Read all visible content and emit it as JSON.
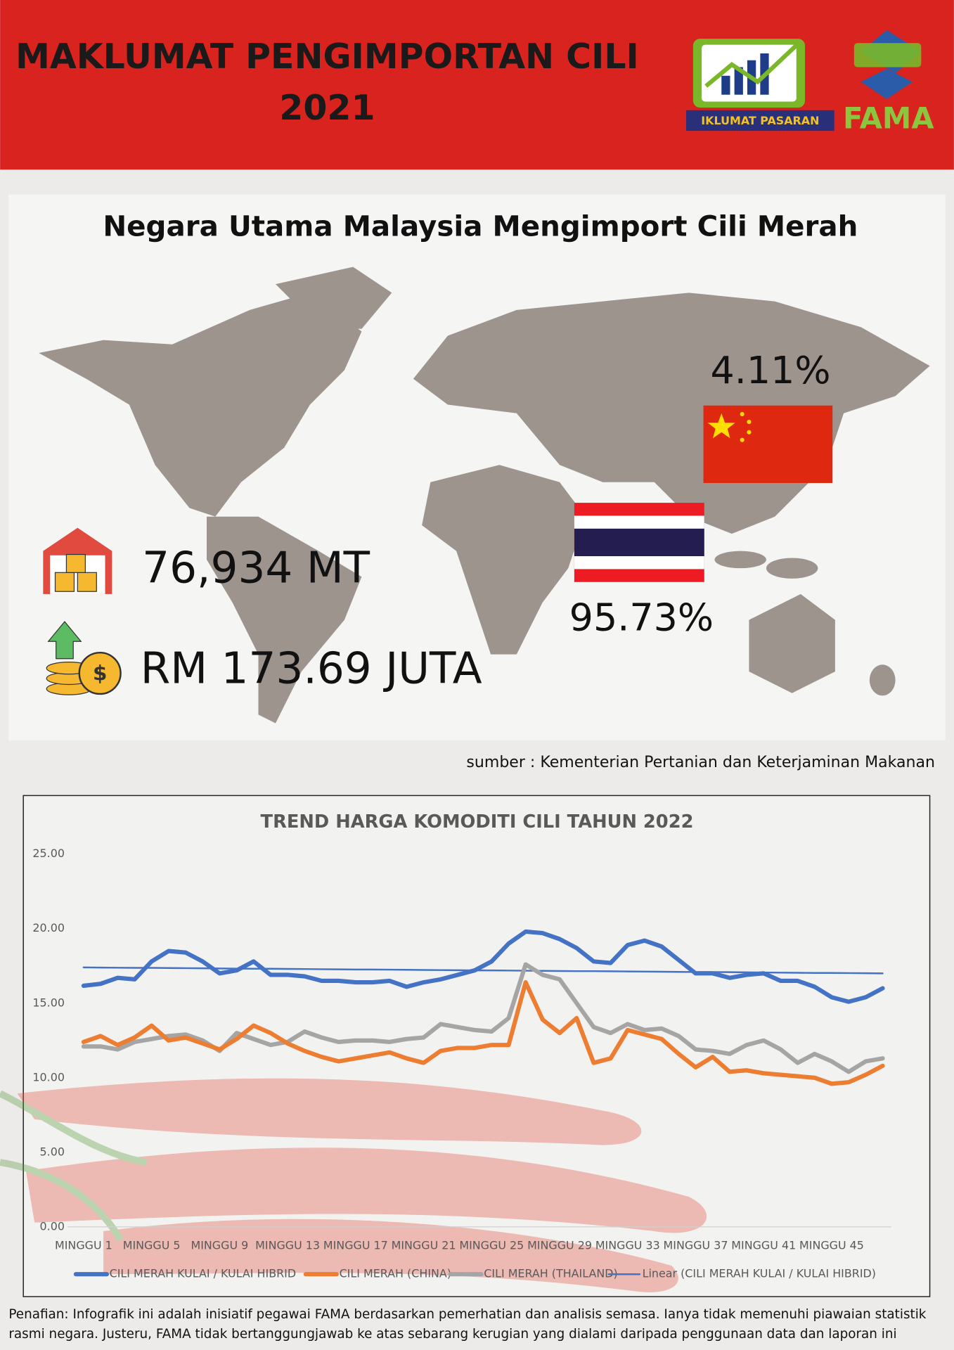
{
  "header": {
    "title_lines": [
      "MAKLUMAT PENGIMPORTAN CILI",
      "2021"
    ],
    "logo_text": "IKLUMAT PASARAN",
    "brand": "FAMA"
  },
  "map_section": {
    "title": "Negara Utama Malaysia Mengimport Cili Merah",
    "china_share": "4.11%",
    "thailand_share": "95.73%",
    "volume": "76,934 MT",
    "value": "RM 173.69 JUTA"
  },
  "source": "sumber : Kementerian Pertanian dan Keterjaminan Makanan",
  "chart_data": {
    "type": "line",
    "title": "TREND HARGA KOMODITI CILI TAHUN 2022",
    "categories": [
      "MINGGU 1",
      null,
      null,
      null,
      "MINGGU 5",
      null,
      null,
      null,
      "MINGGU 9",
      null,
      null,
      null,
      "MINGGU 13",
      null,
      null,
      null,
      "MINGGU 17",
      null,
      null,
      null,
      "MINGGU 21",
      null,
      null,
      null,
      "MINGGU 25",
      null,
      null,
      null,
      "MINGGU 29",
      null,
      null,
      null,
      "MINGGU 33",
      null,
      null,
      null,
      "MINGGU 37",
      null,
      null,
      null,
      "MINGGU 41",
      null,
      null,
      null,
      "MINGGU 45",
      null,
      null,
      null
    ],
    "ylim": [
      0,
      25
    ],
    "yticks": [
      {
        "value": 0,
        "label": "0.00"
      },
      {
        "value": 5,
        "label": "5.00"
      },
      {
        "value": 10,
        "label": "10.00"
      },
      {
        "value": 15,
        "label": "15.00"
      },
      {
        "value": 20,
        "label": "20.00"
      },
      {
        "value": 25,
        "label": "25.00"
      }
    ],
    "grid": false,
    "legend": "bottom",
    "series": [
      {
        "name": "CILI MERAH KULAI / KULAI HIBRID",
        "color": "#4472c4",
        "values": [
          16.17,
          16.3,
          16.7,
          16.6,
          17.8,
          18.5,
          18.4,
          17.8,
          17.0,
          17.2,
          17.8,
          16.9,
          16.9,
          16.8,
          16.5,
          16.5,
          16.4,
          16.4,
          16.5,
          16.1,
          16.4,
          16.6,
          16.9,
          17.2,
          17.8,
          19.0,
          19.8,
          19.7,
          19.3,
          18.7,
          17.8,
          17.7,
          18.9,
          19.2,
          18.8,
          17.9,
          17.0,
          17.0,
          16.7,
          16.9,
          17.0,
          16.5,
          16.5,
          16.1,
          15.4,
          15.1,
          15.4,
          16.0
        ]
      },
      {
        "name": "CILI MERAH (CHINA)",
        "color": "#ed7d31",
        "values": [
          12.4,
          12.8,
          12.2,
          12.7,
          13.5,
          12.5,
          12.7,
          12.3,
          11.9,
          12.6,
          13.5,
          13.0,
          12.3,
          11.8,
          11.4,
          11.1,
          11.3,
          11.5,
          11.7,
          11.3,
          11.0,
          11.8,
          12.0,
          12.0,
          12.2,
          12.2,
          16.4,
          13.9,
          13.0,
          14.0,
          11.0,
          11.3,
          13.2,
          12.9,
          12.6,
          11.6,
          10.7,
          11.4,
          10.4,
          10.5,
          10.3,
          10.2,
          10.1,
          10.0,
          9.6,
          9.7,
          10.2,
          10.8
        ]
      },
      {
        "name": "CILI MERAH (THAILAND)",
        "color": "#a5a5a5",
        "values": [
          12.1,
          12.1,
          11.9,
          12.4,
          12.6,
          12.8,
          12.9,
          12.5,
          11.8,
          13.0,
          12.6,
          12.2,
          12.4,
          13.1,
          12.7,
          12.4,
          12.5,
          12.5,
          12.4,
          12.6,
          12.7,
          13.6,
          13.4,
          13.2,
          13.1,
          14.0,
          17.6,
          16.9,
          16.6,
          15.0,
          13.4,
          13.0,
          13.6,
          13.2,
          13.3,
          12.8,
          11.9,
          11.8,
          11.6,
          12.2,
          12.5,
          11.9,
          11.0,
          11.6,
          11.1,
          10.4,
          11.1,
          11.3
        ]
      },
      {
        "name": "Linear (CILI MERAH KULAI / KULAI HIBRID)",
        "color": "#4472c4",
        "values": [
          17.4,
          17.39,
          17.38,
          17.37,
          17.37,
          17.36,
          17.35,
          17.34,
          17.33,
          17.32,
          17.31,
          17.31,
          17.3,
          17.29,
          17.28,
          17.27,
          17.26,
          17.26,
          17.25,
          17.24,
          17.23,
          17.22,
          17.21,
          17.2,
          17.2,
          17.19,
          17.18,
          17.17,
          17.16,
          17.15,
          17.15,
          17.14,
          17.13,
          17.12,
          17.11,
          17.1,
          17.09,
          17.09,
          17.08,
          17.07,
          17.06,
          17.05,
          17.04,
          17.03,
          17.03,
          17.02,
          17.01,
          17.0
        ]
      }
    ]
  },
  "disclaimer": [
    "Penafian: Infografik ini adalah inisiatif pegawai FAMA berdasarkan pemerhatian dan analisis semasa. Ianya tidak memenuhi piawaian statistik",
    "rasmi negara. Justeru, FAMA tidak bertanggungjawab ke atas sebarang kerugian yang dialami daripada penggunaan data dan laporan ini"
  ]
}
